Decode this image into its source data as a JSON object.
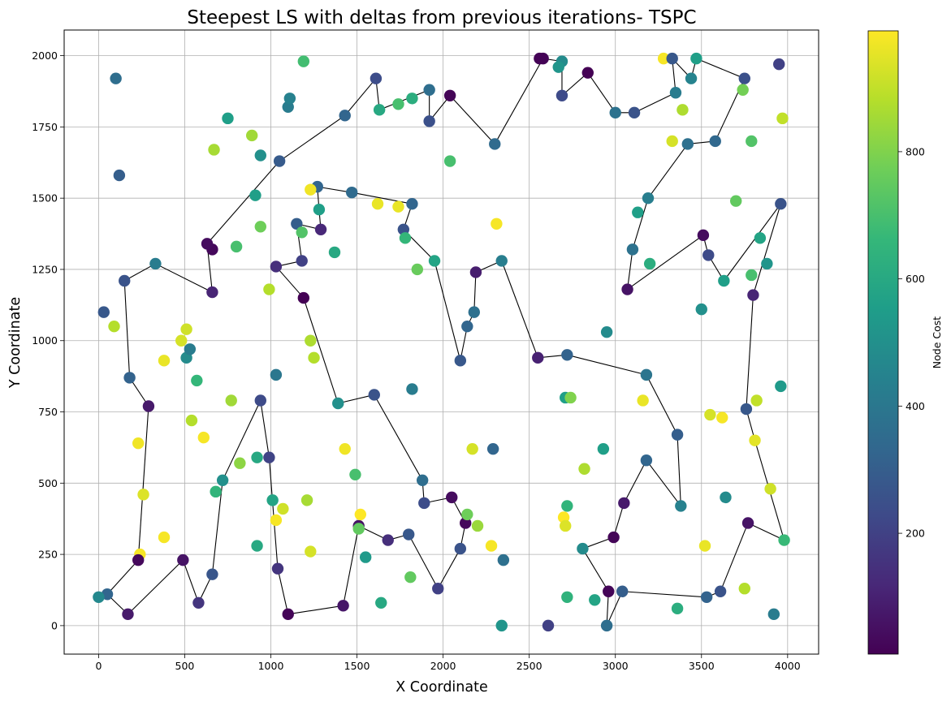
{
  "chart_data": {
    "type": "scatter",
    "title": "Steepest LS with deltas from previous iterations- TSPC",
    "xlabel": "X Coordinate",
    "ylabel": "Y Coordinate",
    "xlim": [
      -200,
      4180
    ],
    "ylim": [
      -100,
      2090
    ],
    "xticks": [
      0,
      500,
      1000,
      1500,
      2000,
      2500,
      3000,
      3500,
      4000
    ],
    "yticks": [
      0,
      250,
      500,
      750,
      1000,
      1250,
      1500,
      1750,
      2000
    ],
    "grid": true,
    "colorbar": {
      "label": "Node Cost",
      "colormap": "viridis",
      "range": [
        10,
        990
      ],
      "ticks": [
        200,
        400,
        600,
        800
      ]
    },
    "points": [
      [
        2580,
        1990,
        15
      ],
      [
        2690,
        1980,
        480
      ],
      [
        2840,
        1940,
        10
      ],
      [
        3280,
        1990,
        980
      ],
      [
        3470,
        1990,
        560
      ],
      [
        3330,
        1990,
        280
      ],
      [
        3440,
        1920,
        450
      ],
      [
        3350,
        1870,
        420
      ],
      [
        3750,
        1920,
        250
      ],
      [
        3950,
        1970,
        200
      ],
      [
        2670,
        1960,
        520
      ],
      [
        2690,
        1860,
        230
      ],
      [
        3000,
        1800,
        380
      ],
      [
        3110,
        1800,
        260
      ],
      [
        3390,
        1810,
        870
      ],
      [
        3420,
        1690,
        370
      ],
      [
        3580,
        1700,
        340
      ],
      [
        3330,
        1700,
        930
      ],
      [
        3740,
        1880,
        780
      ],
      [
        3790,
        1700,
        720
      ],
      [
        3970,
        1780,
        900
      ],
      [
        3190,
        1500,
        430
      ],
      [
        3130,
        1450,
        560
      ],
      [
        3100,
        1320,
        380
      ],
      [
        3200,
        1270,
        620
      ],
      [
        3070,
        1180,
        60
      ],
      [
        3510,
        1370,
        40
      ],
      [
        3540,
        1300,
        230
      ],
      [
        3630,
        1210,
        560
      ],
      [
        3840,
        1360,
        580
      ],
      [
        3700,
        1490,
        750
      ],
      [
        3790,
        1230,
        700
      ],
      [
        3880,
        1270,
        520
      ],
      [
        3960,
        1480,
        260
      ],
      [
        3800,
        1160,
        110
      ],
      [
        3500,
        1110,
        500
      ],
      [
        2950,
        1030,
        480
      ],
      [
        3760,
        760,
        280
      ],
      [
        3820,
        790,
        900
      ],
      [
        3960,
        840,
        540
      ],
      [
        3550,
        740,
        930
      ],
      [
        3620,
        730,
        980
      ],
      [
        3810,
        650,
        950
      ],
      [
        3180,
        880,
        390
      ],
      [
        3160,
        790,
        960
      ],
      [
        2720,
        950,
        320
      ],
      [
        2550,
        940,
        100
      ],
      [
        2710,
        800,
        560
      ],
      [
        2740,
        800,
        800
      ],
      [
        3360,
        670,
        300
      ],
      [
        3180,
        580,
        330
      ],
      [
        3380,
        420,
        440
      ],
      [
        3640,
        450,
        480
      ],
      [
        3900,
        480,
        920
      ],
      [
        3980,
        300,
        670
      ],
      [
        3770,
        360,
        60
      ],
      [
        3520,
        280,
        960
      ],
      [
        3610,
        120,
        260
      ],
      [
        3530,
        100,
        320
      ],
      [
        3750,
        130,
        880
      ],
      [
        3920,
        40,
        420
      ],
      [
        3050,
        430,
        80
      ],
      [
        2990,
        310,
        20
      ],
      [
        2810,
        270,
        480
      ],
      [
        2960,
        120,
        20
      ],
      [
        3040,
        120,
        300
      ],
      [
        2950,
        0,
        360
      ],
      [
        2880,
        90,
        580
      ],
      [
        2720,
        100,
        640
      ],
      [
        3360,
        60,
        620
      ],
      [
        2820,
        550,
        870
      ],
      [
        2930,
        620,
        560
      ],
      [
        2720,
        420,
        650
      ],
      [
        2700,
        380,
        990
      ],
      [
        2710,
        350,
        940
      ],
      [
        2610,
        0,
        200
      ],
      [
        2560,
        1990,
        15
      ],
      [
        2300,
        1690,
        350
      ],
      [
        2040,
        1860,
        20
      ],
      [
        1920,
        1880,
        360
      ],
      [
        1920,
        1770,
        250
      ],
      [
        1820,
        1850,
        620
      ],
      [
        1740,
        1830,
        700
      ],
      [
        1630,
        1810,
        600
      ],
      [
        1610,
        1920,
        240
      ],
      [
        1820,
        1480,
        330
      ],
      [
        1770,
        1390,
        260
      ],
      [
        1780,
        1360,
        660
      ],
      [
        1740,
        1470,
        960
      ],
      [
        1620,
        1480,
        960
      ],
      [
        1470,
        1520,
        350
      ],
      [
        1270,
        1540,
        330
      ],
      [
        1280,
        1460,
        560
      ],
      [
        1230,
        1530,
        970
      ],
      [
        1290,
        1390,
        120
      ],
      [
        1150,
        1410,
        300
      ],
      [
        1180,
        1380,
        720
      ],
      [
        1180,
        1280,
        200
      ],
      [
        1030,
        1260,
        140
      ],
      [
        1190,
        1150,
        10
      ],
      [
        990,
        1180,
        880
      ],
      [
        1370,
        1310,
        600
      ],
      [
        1950,
        1280,
        580
      ],
      [
        1850,
        1250,
        760
      ],
      [
        2040,
        1630,
        700
      ],
      [
        2310,
        1410,
        980
      ],
      [
        2190,
        1240,
        90
      ],
      [
        2340,
        1280,
        430
      ],
      [
        2180,
        1100,
        370
      ],
      [
        2140,
        1050,
        330
      ],
      [
        2100,
        930,
        280
      ],
      [
        1820,
        830,
        420
      ],
      [
        1600,
        810,
        260
      ],
      [
        1390,
        780,
        500
      ],
      [
        1250,
        940,
        880
      ],
      [
        1230,
        1000,
        870
      ],
      [
        1030,
        880,
        400
      ],
      [
        940,
        790,
        230
      ],
      [
        2170,
        620,
        930
      ],
      [
        2290,
        620,
        330
      ],
      [
        1880,
        510,
        360
      ],
      [
        1890,
        430,
        240
      ],
      [
        2050,
        450,
        40
      ],
      [
        2130,
        360,
        30
      ],
      [
        2140,
        390,
        770
      ],
      [
        2200,
        350,
        840
      ],
      [
        2280,
        280,
        980
      ],
      [
        2100,
        270,
        260
      ],
      [
        1970,
        130,
        200
      ],
      [
        2350,
        230,
        370
      ],
      [
        2340,
        0,
        520
      ],
      [
        1800,
        320,
        280
      ],
      [
        1680,
        300,
        140
      ],
      [
        1510,
        350,
        60
      ],
      [
        1510,
        340,
        750
      ],
      [
        1520,
        390,
        990
      ],
      [
        1550,
        240,
        540
      ],
      [
        1640,
        80,
        600
      ],
      [
        1810,
        170,
        750
      ],
      [
        1430,
        620,
        970
      ],
      [
        1490,
        530,
        700
      ],
      [
        1420,
        70,
        70
      ],
      [
        1100,
        40,
        20
      ],
      [
        1040,
        200,
        160
      ],
      [
        990,
        590,
        210
      ],
      [
        1010,
        440,
        580
      ],
      [
        1030,
        370,
        980
      ],
      [
        1070,
        410,
        920
      ],
      [
        1210,
        440,
        860
      ],
      [
        1230,
        260,
        930
      ],
      [
        920,
        590,
        600
      ],
      [
        920,
        280,
        600
      ],
      [
        820,
        570,
        820
      ],
      [
        770,
        790,
        850
      ],
      [
        720,
        510,
        500
      ],
      [
        680,
        470,
        650
      ],
      [
        660,
        180,
        270
      ],
      [
        580,
        80,
        160
      ],
      [
        490,
        230,
        60
      ],
      [
        610,
        660,
        980
      ],
      [
        540,
        720,
        880
      ],
      [
        570,
        860,
        660
      ],
      [
        510,
        940,
        480
      ],
      [
        530,
        970,
        420
      ],
      [
        510,
        1040,
        920
      ],
      [
        480,
        1000,
        930
      ],
      [
        380,
        930,
        960
      ],
      [
        240,
        250,
        980
      ],
      [
        230,
        230,
        30
      ],
      [
        170,
        40,
        80
      ],
      [
        50,
        110,
        330
      ],
      [
        0,
        100,
        470
      ],
      [
        380,
        310,
        980
      ],
      [
        260,
        460,
        940
      ],
      [
        230,
        640,
        970
      ],
      [
        290,
        770,
        80
      ],
      [
        180,
        870,
        320
      ],
      [
        90,
        1050,
        880
      ],
      [
        30,
        1100,
        280
      ],
      [
        150,
        1210,
        260
      ],
      [
        330,
        1270,
        420
      ],
      [
        660,
        1170,
        110
      ],
      [
        660,
        1320,
        30
      ],
      [
        630,
        1340,
        40
      ],
      [
        800,
        1330,
        700
      ],
      [
        940,
        1400,
        770
      ],
      [
        910,
        1510,
        560
      ],
      [
        940,
        1650,
        500
      ],
      [
        890,
        1720,
        850
      ],
      [
        750,
        1780,
        560
      ],
      [
        670,
        1670,
        860
      ],
      [
        1050,
        1630,
        290
      ],
      [
        1100,
        1820,
        420
      ],
      [
        1110,
        1850,
        440
      ],
      [
        1190,
        1980,
        690
      ],
      [
        1430,
        1790,
        330
      ],
      [
        100,
        1920,
        360
      ],
      [
        120,
        1580,
        300
      ]
    ],
    "tour": [
      [
        2580,
        1990
      ],
      [
        2690,
        1980
      ],
      [
        2690,
        1860
      ],
      [
        2840,
        1940
      ],
      [
        3000,
        1800
      ],
      [
        3110,
        1800
      ],
      [
        3350,
        1870
      ],
      [
        3330,
        1990
      ],
      [
        3440,
        1920
      ],
      [
        3470,
        1990
      ],
      [
        3750,
        1920
      ],
      [
        3580,
        1700
      ],
      [
        3420,
        1690
      ],
      [
        3190,
        1500
      ],
      [
        3100,
        1320
      ],
      [
        3070,
        1180
      ],
      [
        3510,
        1370
      ],
      [
        3540,
        1300
      ],
      [
        3630,
        1210
      ],
      [
        3960,
        1480
      ],
      [
        3800,
        1160
      ],
      [
        3760,
        760
      ],
      [
        3810,
        650
      ],
      [
        3980,
        300
      ],
      [
        3770,
        360
      ],
      [
        3610,
        120
      ],
      [
        3530,
        100
      ],
      [
        3040,
        120
      ],
      [
        2950,
        0
      ],
      [
        2960,
        120
      ],
      [
        2810,
        270
      ],
      [
        2990,
        310
      ],
      [
        3050,
        430
      ],
      [
        3180,
        580
      ],
      [
        3380,
        420
      ],
      [
        3360,
        670
      ],
      [
        3180,
        880
      ],
      [
        2720,
        950
      ],
      [
        2550,
        940
      ],
      [
        2340,
        1280
      ],
      [
        2190,
        1240
      ],
      [
        2180,
        1100
      ],
      [
        2140,
        1050
      ],
      [
        2100,
        930
      ],
      [
        1950,
        1280
      ],
      [
        1770,
        1390
      ],
      [
        1820,
        1480
      ],
      [
        1470,
        1520
      ],
      [
        1270,
        1540
      ],
      [
        1280,
        1460
      ],
      [
        1290,
        1390
      ],
      [
        1150,
        1410
      ],
      [
        1180,
        1280
      ],
      [
        1030,
        1260
      ],
      [
        1190,
        1150
      ],
      [
        1390,
        780
      ],
      [
        1600,
        810
      ],
      [
        1880,
        510
      ],
      [
        1890,
        430
      ],
      [
        2050,
        450
      ],
      [
        2130,
        360
      ],
      [
        2100,
        270
      ],
      [
        1970,
        130
      ],
      [
        1800,
        320
      ],
      [
        1680,
        300
      ],
      [
        1510,
        350
      ],
      [
        1420,
        70
      ],
      [
        1100,
        40
      ],
      [
        1040,
        200
      ],
      [
        990,
        590
      ],
      [
        940,
        790
      ],
      [
        720,
        510
      ],
      [
        660,
        180
      ],
      [
        580,
        80
      ],
      [
        490,
        230
      ],
      [
        170,
        40
      ],
      [
        50,
        110
      ],
      [
        230,
        230
      ],
      [
        290,
        770
      ],
      [
        180,
        870
      ],
      [
        150,
        1210
      ],
      [
        330,
        1270
      ],
      [
        660,
        1170
      ],
      [
        630,
        1340
      ],
      [
        660,
        1320
      ],
      [
        630,
        1340
      ],
      [
        1050,
        1630
      ],
      [
        1430,
        1790
      ],
      [
        1610,
        1920
      ],
      [
        1630,
        1810
      ],
      [
        1920,
        1880
      ],
      [
        1920,
        1770
      ],
      [
        2040,
        1860
      ],
      [
        2300,
        1690
      ],
      [
        2580,
        1990
      ]
    ]
  }
}
